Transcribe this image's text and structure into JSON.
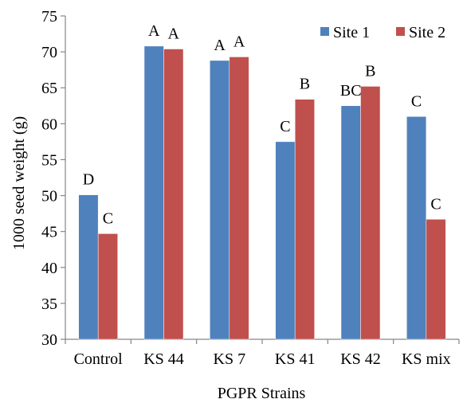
{
  "chart_data": {
    "type": "bar",
    "xlabel": "PGPR Strains",
    "ylabel": "1000 seed weight (g)",
    "ylim": [
      30,
      75
    ],
    "yticks": [
      30,
      35,
      40,
      45,
      50,
      55,
      60,
      65,
      70,
      75
    ],
    "categories": [
      "Control",
      "KS 44",
      "KS 7",
      "KS 41",
      "KS 42",
      "KS mix"
    ],
    "series": [
      {
        "name": "Site 1",
        "color": "#4F81BD",
        "values": [
          50.1,
          70.8,
          68.8,
          57.5,
          62.5,
          61.0
        ],
        "letters": [
          "D",
          "A",
          "A",
          "C",
          "BC",
          "C"
        ]
      },
      {
        "name": "Site 2",
        "color": "#C0504D",
        "values": [
          44.7,
          70.4,
          69.3,
          63.4,
          65.2,
          46.7
        ],
        "letters": [
          "C",
          "A",
          "A",
          "B",
          "B",
          "C"
        ]
      }
    ],
    "grid": false,
    "legend": "top-right"
  }
}
